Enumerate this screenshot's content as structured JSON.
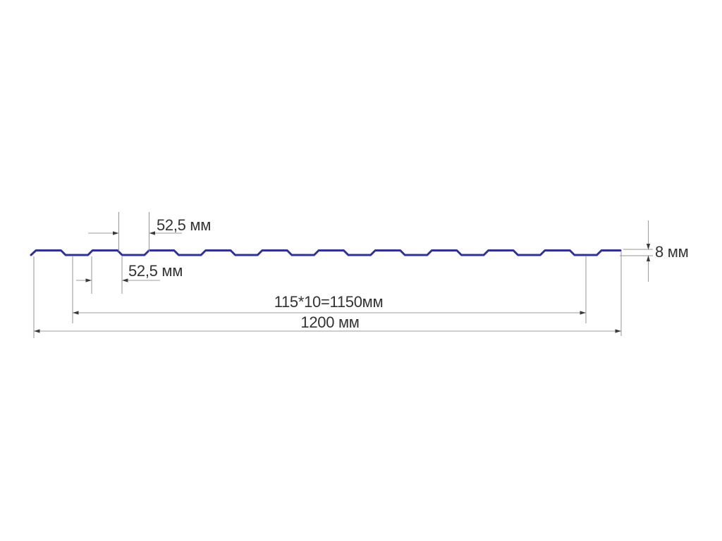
{
  "diagram": {
    "type": "technical-drawing",
    "background": "#ffffff",
    "colors": {
      "profile_line": "#2f2fa0",
      "dimension_line": "#9c9c9c",
      "extension_line": "#949494",
      "arrow": "#3a3a3a",
      "text": "#333333"
    },
    "labels": {
      "top_pitch": "52,5 мм",
      "bottom_pitch": "52,5 мм",
      "working_width": "115*10=1150мм",
      "overall_width": "1200 мм",
      "profile_height": "8 мм"
    },
    "values": {
      "pitch_mm": 52.5,
      "wave_pitch_mm": 115,
      "wave_count": 10,
      "working_width_mm": 1150,
      "overall_width_mm": 1200,
      "profile_height_mm": 8
    }
  }
}
